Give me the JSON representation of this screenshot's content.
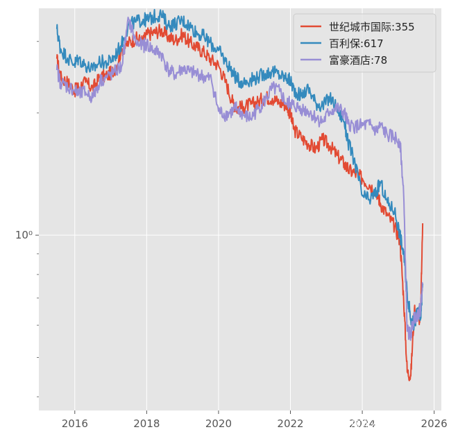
{
  "chart_data": {
    "type": "line",
    "title": "",
    "xlabel": "",
    "ylabel": "",
    "y_scale": "log",
    "grid": true,
    "legend_position": "top-right",
    "xlim": [
      2015.0,
      2026.2
    ],
    "ylim": [
      0.37,
      3.62
    ],
    "x_ticks": [
      2016,
      2018,
      2020,
      2022,
      2024,
      2026
    ],
    "x_tick_labels": [
      "2016",
      "2018",
      "2020",
      "2022",
      "2024",
      "2026"
    ],
    "y_ticks": [
      1
    ],
    "y_tick_labels": [
      "10⁰"
    ],
    "series": [
      {
        "name": "世纪城市国际:355",
        "color": "#E24A33",
        "x": [
          2015.5,
          2015.6,
          2015.8,
          2016.0,
          2016.1,
          2016.3,
          2016.5,
          2016.7,
          2016.9,
          2017.1,
          2017.3,
          2017.5,
          2017.7,
          2017.9,
          2018.0,
          2018.2,
          2018.4,
          2018.6,
          2018.8,
          2019.0,
          2019.2,
          2019.4,
          2019.6,
          2019.8,
          2020.0,
          2020.2,
          2020.4,
          2020.5,
          2020.7,
          2020.9,
          2021.1,
          2021.3,
          2021.5,
          2021.7,
          2021.9,
          2022.0,
          2022.1,
          2022.3,
          2022.5,
          2022.7,
          2022.9,
          2023.1,
          2023.3,
          2023.5,
          2023.6,
          2023.8,
          2024.0,
          2024.2,
          2024.4,
          2024.5,
          2024.7,
          2024.9,
          2025.05,
          2025.15,
          2025.25,
          2025.35,
          2025.45,
          2025.55,
          2025.62,
          2025.68
        ],
        "values": [
          2.72,
          2.45,
          2.38,
          2.27,
          2.32,
          2.38,
          2.3,
          2.45,
          2.47,
          2.55,
          2.85,
          2.98,
          3.05,
          3.0,
          3.12,
          3.15,
          3.2,
          3.08,
          3.02,
          3.12,
          2.98,
          2.9,
          2.82,
          2.7,
          2.62,
          2.38,
          2.12,
          2.05,
          2.07,
          2.1,
          2.13,
          2.19,
          2.17,
          2.12,
          2.09,
          1.98,
          1.82,
          1.74,
          1.68,
          1.63,
          1.72,
          1.66,
          1.57,
          1.5,
          1.45,
          1.42,
          1.38,
          1.33,
          1.28,
          1.2,
          1.12,
          1.05,
          0.97,
          0.7,
          0.46,
          0.45,
          0.66,
          0.63,
          0.62,
          1.07
        ]
      },
      {
        "name": "百利保:617",
        "color": "#348ABD",
        "x": [
          2015.5,
          2015.6,
          2015.8,
          2016.0,
          2016.1,
          2016.3,
          2016.5,
          2016.7,
          2016.9,
          2017.1,
          2017.3,
          2017.5,
          2017.7,
          2017.9,
          2018.0,
          2018.2,
          2018.4,
          2018.6,
          2018.8,
          2019.0,
          2019.2,
          2019.4,
          2019.6,
          2019.8,
          2020.0,
          2020.2,
          2020.4,
          2020.5,
          2020.7,
          2020.9,
          2021.1,
          2021.3,
          2021.5,
          2021.7,
          2021.9,
          2022.0,
          2022.1,
          2022.3,
          2022.5,
          2022.7,
          2022.9,
          2023.1,
          2023.3,
          2023.5,
          2023.6,
          2023.8,
          2024.0,
          2024.2,
          2024.4,
          2024.5,
          2024.7,
          2024.9,
          2025.05,
          2025.15,
          2025.25,
          2025.35,
          2025.45,
          2025.55,
          2025.62,
          2025.68
        ],
        "values": [
          3.22,
          2.88,
          2.73,
          2.65,
          2.72,
          2.62,
          2.55,
          2.68,
          2.65,
          2.75,
          2.95,
          3.3,
          3.35,
          3.4,
          3.38,
          3.45,
          3.5,
          3.28,
          3.32,
          3.38,
          3.28,
          3.15,
          3.08,
          2.95,
          2.85,
          2.68,
          2.52,
          2.42,
          2.38,
          2.42,
          2.45,
          2.5,
          2.53,
          2.48,
          2.43,
          2.4,
          2.28,
          2.2,
          2.3,
          2.12,
          2.08,
          2.18,
          2.05,
          1.9,
          1.7,
          1.5,
          1.25,
          1.22,
          1.28,
          1.35,
          1.2,
          1.15,
          1.0,
          0.9,
          0.72,
          0.62,
          0.6,
          0.66,
          0.62,
          0.76
        ]
      },
      {
        "name": "富豪酒店:78",
        "color": "#988ED5",
        "x": [
          2015.5,
          2015.6,
          2015.8,
          2016.0,
          2016.1,
          2016.3,
          2016.5,
          2016.7,
          2016.9,
          2017.1,
          2017.3,
          2017.5,
          2017.7,
          2017.9,
          2018.0,
          2018.2,
          2018.4,
          2018.6,
          2018.8,
          2019.0,
          2019.2,
          2019.4,
          2019.6,
          2019.8,
          2020.0,
          2020.2,
          2020.4,
          2020.5,
          2020.7,
          2020.9,
          2021.1,
          2021.3,
          2021.5,
          2021.7,
          2021.9,
          2022.0,
          2022.1,
          2022.3,
          2022.5,
          2022.7,
          2022.9,
          2023.1,
          2023.3,
          2023.5,
          2023.6,
          2023.8,
          2024.0,
          2024.2,
          2024.4,
          2024.5,
          2024.7,
          2024.9,
          2025.05,
          2025.15,
          2025.25,
          2025.35,
          2025.45,
          2025.55,
          2025.62,
          2025.68
        ],
        "values": [
          2.55,
          2.38,
          2.32,
          2.28,
          2.22,
          2.25,
          2.18,
          2.4,
          2.45,
          2.52,
          2.6,
          3.4,
          2.98,
          2.93,
          2.95,
          2.85,
          2.8,
          2.55,
          2.48,
          2.58,
          2.52,
          2.5,
          2.45,
          2.42,
          2.02,
          1.98,
          2.02,
          2.06,
          1.97,
          1.94,
          2.05,
          2.15,
          2.3,
          2.26,
          2.1,
          2.12,
          2.08,
          2.05,
          2.02,
          1.95,
          1.9,
          2.02,
          2.05,
          2.0,
          1.88,
          1.85,
          1.86,
          1.87,
          1.8,
          1.86,
          1.76,
          1.74,
          1.7,
          1.27,
          0.58,
          0.57,
          0.63,
          0.64,
          0.66,
          0.76
        ]
      }
    ]
  },
  "watermark": {
    "text": "雪球：流流水不争先"
  }
}
